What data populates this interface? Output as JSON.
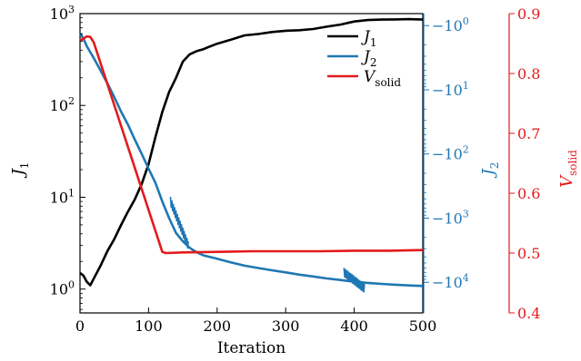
{
  "chart_data": {
    "type": "line",
    "xlabel": "Iteration",
    "x_ticks": [
      0,
      100,
      200,
      300,
      400,
      500
    ],
    "xlim": [
      0,
      500
    ],
    "axes": {
      "left": {
        "label": "J",
        "label_sub": "1",
        "scale": "log",
        "ylim": [
          0.55,
          1000
        ],
        "ticks": [
          1,
          10,
          100,
          1000
        ],
        "tick_labels": [
          {
            "base": "10",
            "exp": "0"
          },
          {
            "base": "10",
            "exp": "1"
          },
          {
            "base": "10",
            "exp": "2"
          },
          {
            "base": "10",
            "exp": "3"
          }
        ],
        "color": "#000000"
      },
      "middle": {
        "label": "J",
        "label_sub": "2",
        "scale": "log-negative",
        "ylim": [
          -0.65,
          -30000
        ],
        "ticks": [
          -1,
          -10,
          -100,
          -1000,
          -10000
        ],
        "tick_labels": [
          {
            "base": "−10",
            "exp": "0"
          },
          {
            "base": "−10",
            "exp": "1"
          },
          {
            "base": "−10",
            "exp": "2"
          },
          {
            "base": "−10",
            "exp": "3"
          },
          {
            "base": "−10",
            "exp": "4"
          }
        ],
        "color": "#1f77b4"
      },
      "right": {
        "label": "V",
        "label_sub": "solid",
        "scale": "linear",
        "ylim": [
          0.4,
          0.9
        ],
        "ticks": [
          0.4,
          0.5,
          0.6,
          0.7,
          0.8,
          0.9
        ],
        "tick_labels": [
          "0.4",
          "0.5",
          "0.6",
          "0.7",
          "0.8",
          "0.9"
        ],
        "color": "#e31a1c"
      }
    },
    "legend": {
      "placement": "top-right"
    },
    "series": [
      {
        "name": "J",
        "name_sub": "1",
        "axis": "left",
        "color": "#000000",
        "x": [
          0,
          5,
          10,
          15,
          20,
          30,
          40,
          50,
          60,
          70,
          80,
          90,
          100,
          110,
          120,
          130,
          140,
          150,
          160,
          170,
          180,
          190,
          200,
          220,
          240,
          260,
          280,
          300,
          320,
          340,
          360,
          380,
          400,
          420,
          440,
          460,
          480,
          500
        ],
        "values": [
          1.5,
          1.4,
          1.2,
          1.1,
          1.3,
          1.8,
          2.6,
          3.5,
          5,
          7,
          9.5,
          14,
          23,
          45,
          85,
          140,
          200,
          300,
          360,
          390,
          410,
          440,
          470,
          520,
          580,
          600,
          630,
          650,
          660,
          680,
          720,
          760,
          820,
          850,
          860,
          865,
          870,
          860
        ]
      },
      {
        "name": "J",
        "name_sub": "2",
        "axis": "middle",
        "color": "#1f77b4",
        "x": [
          0,
          5,
          10,
          20,
          30,
          40,
          50,
          60,
          70,
          80,
          90,
          100,
          110,
          120,
          130,
          140,
          150,
          160,
          170,
          180,
          200,
          220,
          240,
          260,
          280,
          300,
          320,
          340,
          360,
          380,
          400,
          420,
          440,
          460,
          480,
          500
        ],
        "values": [
          -1.3,
          -1.6,
          -2.1,
          -3.2,
          -5,
          -8,
          -13,
          -22,
          -35,
          -60,
          -100,
          -170,
          -280,
          -550,
          -1000,
          -1700,
          -2300,
          -2900,
          -3400,
          -3800,
          -4300,
          -4900,
          -5500,
          -6000,
          -6500,
          -7000,
          -7600,
          -8100,
          -8700,
          -9200,
          -9800,
          -10200,
          -10600,
          -10900,
          -11200,
          -11400
        ]
      },
      {
        "name": "V",
        "name_sub": "solid",
        "axis": "right",
        "color": "#e31a1c",
        "x": [
          0,
          5,
          10,
          15,
          20,
          120,
          125,
          150,
          200,
          250,
          300,
          350,
          400,
          450,
          500
        ],
        "values": [
          0.855,
          0.858,
          0.862,
          0.861,
          0.852,
          0.502,
          0.5,
          0.501,
          0.502,
          0.503,
          0.503,
          0.503,
          0.504,
          0.504,
          0.505
        ]
      }
    ],
    "annotations": [
      {
        "series": 1,
        "type": "oscillation",
        "x_range": [
          132,
          158
        ],
        "y_range": [
          -550,
          -2700
        ]
      },
      {
        "series": 1,
        "type": "oscillation",
        "x_range": [
          385,
          415
        ],
        "y_range": [
          -7000,
          -12500
        ]
      }
    ]
  }
}
